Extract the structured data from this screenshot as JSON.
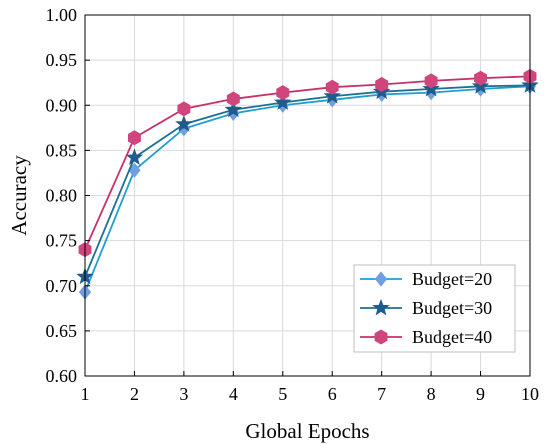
{
  "chart_data": {
    "type": "line",
    "title": "",
    "xlabel": "Global Epochs",
    "ylabel": "Accuracy",
    "x": [
      1,
      2,
      3,
      4,
      5,
      6,
      7,
      8,
      9,
      10
    ],
    "xlim": [
      1,
      10
    ],
    "ylim": [
      0.6,
      1.0
    ],
    "xticks": [
      "1",
      "2",
      "3",
      "4",
      "5",
      "6",
      "7",
      "8",
      "9",
      "10"
    ],
    "yticks": [
      "0.60",
      "0.65",
      "0.70",
      "0.75",
      "0.80",
      "0.85",
      "0.90",
      "0.95",
      "1.00"
    ],
    "grid": true,
    "legend_position": "bottom-right",
    "series": [
      {
        "name": "Budget=20",
        "marker": "diamond",
        "line_color": "#1e9fd0",
        "marker_color": "#6f9fe0",
        "values": [
          0.693,
          0.828,
          0.874,
          0.891,
          0.9,
          0.906,
          0.912,
          0.914,
          0.918,
          0.921
        ]
      },
      {
        "name": "Budget=30",
        "marker": "star",
        "line_color": "#1f7090",
        "marker_color": "#1f5c8c",
        "values": [
          0.71,
          0.842,
          0.879,
          0.895,
          0.903,
          0.91,
          0.915,
          0.918,
          0.921,
          0.922
        ]
      },
      {
        "name": "Budget=40",
        "marker": "hexagon",
        "line_color": "#c8306a",
        "marker_color": "#d0457c",
        "values": [
          0.74,
          0.864,
          0.896,
          0.907,
          0.914,
          0.92,
          0.923,
          0.927,
          0.93,
          0.932
        ]
      }
    ]
  }
}
